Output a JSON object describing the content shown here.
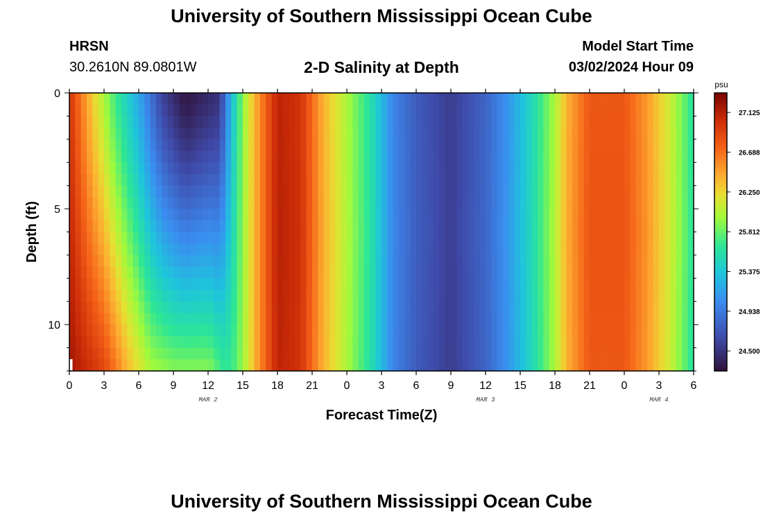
{
  "header": {
    "title": "University of Southern Mississippi Ocean Cube",
    "station": "HRSN",
    "coords": "30.2610N  89.0801W",
    "subtitle": "2-D Salinity at Depth",
    "model_start_label": "Model Start Time",
    "model_start_value": "03/02/2024 Hour 09",
    "footer_title": "University of Southern Mississippi Ocean Cube"
  },
  "chart_data": {
    "type": "heatmap",
    "title": "2-D Salinity at Depth",
    "xlabel": "Forecast Time(Z)",
    "ylabel": "Depth (ft)",
    "x_range_hours": [
      0,
      54
    ],
    "y_range_ft": [
      0,
      12
    ],
    "y_inverted": true,
    "x_ticks": [
      0,
      3,
      6,
      9,
      12,
      15,
      18,
      21,
      24,
      27,
      30,
      33,
      36,
      39,
      42,
      45,
      48,
      51,
      54
    ],
    "x_tick_labels": [
      "0",
      "3",
      "6",
      "9",
      "12",
      "15",
      "18",
      "21",
      "0",
      "3",
      "6",
      "9",
      "12",
      "15",
      "18",
      "21",
      "0",
      "3",
      "6"
    ],
    "y_ticks": [
      0,
      5,
      10
    ],
    "y_tick_labels": [
      "0",
      "5",
      "10"
    ],
    "date_labels": [
      {
        "hour": 12,
        "text": "MAR 2"
      },
      {
        "hour": 36,
        "text": "MAR 3"
      },
      {
        "hour": 51,
        "text": "MAR 4"
      }
    ],
    "colorbar": {
      "units": "psu",
      "min": 24.28,
      "max": 27.34,
      "ticks": [
        24.5,
        24.938,
        25.375,
        25.812,
        26.25,
        26.688,
        27.125
      ],
      "tick_labels": [
        "24.500",
        "24.938",
        "25.375",
        "25.812",
        "26.250",
        "26.688",
        "27.125"
      ]
    },
    "surface_profile_psu": [
      {
        "hour": 0,
        "psu": 27.0
      },
      {
        "hour": 2,
        "psu": 26.3
      },
      {
        "hour": 4,
        "psu": 25.7
      },
      {
        "hour": 6,
        "psu": 25.2
      },
      {
        "hour": 8,
        "psu": 24.6
      },
      {
        "hour": 10,
        "psu": 24.3
      },
      {
        "hour": 13,
        "psu": 24.5
      },
      {
        "hour": 14,
        "psu": 25.3
      },
      {
        "hour": 15,
        "psu": 25.9
      },
      {
        "hour": 16,
        "psu": 26.4
      },
      {
        "hour": 18,
        "psu": 27.1
      },
      {
        "hour": 20,
        "psu": 27.0
      },
      {
        "hour": 22,
        "psu": 26.4
      },
      {
        "hour": 24,
        "psu": 26.0
      },
      {
        "hour": 26,
        "psu": 25.6
      },
      {
        "hour": 28,
        "psu": 25.0
      },
      {
        "hour": 30,
        "psu": 24.75
      },
      {
        "hour": 33,
        "psu": 24.55
      },
      {
        "hour": 36,
        "psu": 24.8
      },
      {
        "hour": 38,
        "psu": 25.1
      },
      {
        "hour": 40,
        "psu": 25.5
      },
      {
        "hour": 42,
        "psu": 26.0
      },
      {
        "hour": 43,
        "psu": 26.4
      },
      {
        "hour": 45,
        "psu": 26.8
      },
      {
        "hour": 48,
        "psu": 26.8
      },
      {
        "hour": 50,
        "psu": 26.5
      },
      {
        "hour": 52,
        "psu": 26.1
      },
      {
        "hour": 54,
        "psu": 25.6
      }
    ],
    "bottom_profile_psu": [
      {
        "hour": 0,
        "psu": 27.2
      },
      {
        "hour": 3,
        "psu": 26.9
      },
      {
        "hour": 5,
        "psu": 26.4
      },
      {
        "hour": 7,
        "psu": 26.0
      },
      {
        "hour": 9,
        "psu": 25.9
      },
      {
        "hour": 14,
        "psu": 25.9
      },
      {
        "hour": 16,
        "psu": 26.3
      }
    ],
    "bottom_blend_until_hour": 16
  }
}
